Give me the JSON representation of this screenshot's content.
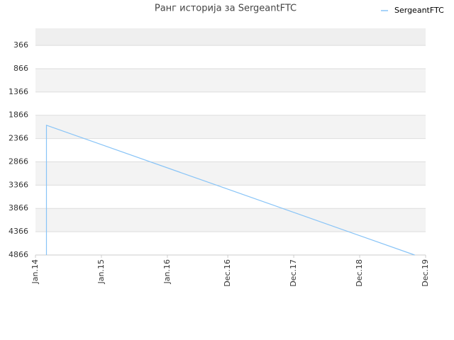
{
  "chart_data": {
    "type": "line",
    "title": "Ранг историја за SergeantFTC",
    "x": [
      "2014-03",
      "2014-03",
      "2019-10"
    ],
    "series": [
      {
        "name": "SergeantFTC",
        "color": "#88c4f7",
        "values": [
          4866,
          2080,
          4866
        ]
      }
    ],
    "xlim": [
      "2014-01",
      "2019-12"
    ],
    "xticks": [
      {
        "value": "2014-01",
        "label": "Jan.14"
      },
      {
        "value": "2015-01",
        "label": "Jan.15"
      },
      {
        "value": "2016-01",
        "label": "Jan.16"
      },
      {
        "value": "2016-12",
        "label": "Dec.16"
      },
      {
        "value": "2017-12",
        "label": "Dec.17"
      },
      {
        "value": "2018-12",
        "label": "Dec.18"
      },
      {
        "value": "2019-12",
        "label": "Dec.19"
      }
    ],
    "ylim": [
      4866,
      0
    ],
    "yticks": [
      366,
      866,
      1366,
      1866,
      2366,
      2866,
      3366,
      3866,
      4366,
      4866
    ],
    "grid": true,
    "legend": "top-right"
  }
}
